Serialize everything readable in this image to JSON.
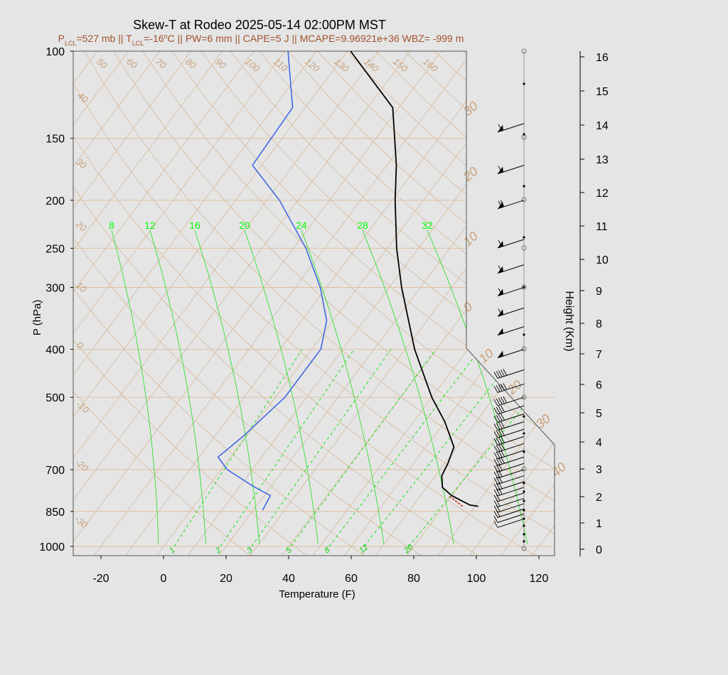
{
  "title": "Skew-T at Rodeo 2025-05-14 02:00PM MST",
  "subtitle_parts": {
    "p_lcl": "527 mb",
    "t_lcl": "-16",
    "pw": "6 mm",
    "cape": "5 J",
    "mcape": "9.96921e+36",
    "wbz": "-999 m"
  },
  "colors": {
    "background": "#e5e5e5",
    "dewpoint": "#4169e1",
    "temperature": "#000000",
    "parcel": "#cc0000",
    "isobar": "#e0c0a0",
    "isotherm": "#d8b898",
    "mixing_ratio": "#00e000",
    "subtitle": "#a0522d"
  },
  "chart_data": {
    "type": "skew-t",
    "xlabel": "Temperature (F)",
    "ylabel": "P (hPa)",
    "right_label": "Height (Km)",
    "x_ticks": [
      -20,
      0,
      20,
      40,
      60,
      80,
      100,
      120
    ],
    "p_ticks": [
      100,
      150,
      200,
      250,
      300,
      400,
      500,
      700,
      850,
      1000
    ],
    "height_ticks": [
      0,
      1,
      2,
      3,
      4,
      5,
      6,
      7,
      8,
      9,
      10,
      11,
      12,
      13,
      14,
      15,
      16
    ],
    "isotherm_labels_top": [
      50,
      60,
      70,
      80,
      90,
      100,
      110,
      120,
      130,
      140,
      150,
      160
    ],
    "isotherm_labels_left": [
      40,
      30,
      20,
      10,
      0,
      -10,
      -20,
      -30
    ],
    "isotherm_labels_right": [
      30,
      20,
      10,
      0,
      10,
      20,
      30,
      40
    ],
    "mixing_ratio_top": [
      8,
      12,
      16,
      20,
      24,
      28,
      32
    ],
    "mixing_ratio_bottom": [
      1,
      2,
      3,
      5,
      8,
      12,
      20
    ],
    "temperature_profile": [
      {
        "p": 830,
        "t": 91
      },
      {
        "p": 825,
        "t": 88
      },
      {
        "p": 790,
        "t": 80
      },
      {
        "p": 760,
        "t": 75
      },
      {
        "p": 720,
        "t": 72
      },
      {
        "p": 680,
        "t": 71
      },
      {
        "p": 630,
        "t": 69
      },
      {
        "p": 560,
        "t": 60
      },
      {
        "p": 500,
        "t": 50
      },
      {
        "p": 400,
        "t": 33
      },
      {
        "p": 300,
        "t": 14
      },
      {
        "p": 250,
        "t": 3
      },
      {
        "p": 200,
        "t": -9
      },
      {
        "p": 170,
        "t": -17
      },
      {
        "p": 130,
        "t": -32
      },
      {
        "p": 100,
        "t": -59
      }
    ],
    "parcel_segment": [
      {
        "p": 830,
        "t": 86
      },
      {
        "p": 790,
        "t": 79
      }
    ],
    "dewpoint_profile": [
      {
        "p": 845,
        "t": 23
      },
      {
        "p": 790,
        "t": 22
      },
      {
        "p": 755,
        "t": 14
      },
      {
        "p": 700,
        "t": 2
      },
      {
        "p": 660,
        "t": -4
      },
      {
        "p": 600,
        "t": -1
      },
      {
        "p": 500,
        "t": 3
      },
      {
        "p": 400,
        "t": 3
      },
      {
        "p": 350,
        "t": -2
      },
      {
        "p": 300,
        "t": -12
      },
      {
        "p": 250,
        "t": -26
      },
      {
        "p": 200,
        "t": -46
      },
      {
        "p": 170,
        "t": -63
      },
      {
        "p": 130,
        "t": -64
      },
      {
        "p": 100,
        "t": -79
      }
    ],
    "wind_barbs": [
      {
        "p": 880,
        "dir": 250,
        "speed": 10
      },
      {
        "p": 860,
        "dir": 250,
        "speed": 10
      },
      {
        "p": 840,
        "dir": 250,
        "speed": 15
      },
      {
        "p": 820,
        "dir": 250,
        "speed": 15
      },
      {
        "p": 800,
        "dir": 255,
        "speed": 20
      },
      {
        "p": 780,
        "dir": 255,
        "speed": 20
      },
      {
        "p": 760,
        "dir": 255,
        "speed": 25
      },
      {
        "p": 740,
        "dir": 255,
        "speed": 25
      },
      {
        "p": 720,
        "dir": 255,
        "speed": 30
      },
      {
        "p": 700,
        "dir": 255,
        "speed": 30
      },
      {
        "p": 680,
        "dir": 255,
        "speed": 30
      },
      {
        "p": 660,
        "dir": 255,
        "speed": 35
      },
      {
        "p": 640,
        "dir": 255,
        "speed": 35
      },
      {
        "p": 620,
        "dir": 255,
        "speed": 35
      },
      {
        "p": 600,
        "dir": 255,
        "speed": 40
      },
      {
        "p": 580,
        "dir": 255,
        "speed": 40
      },
      {
        "p": 560,
        "dir": 255,
        "speed": 40
      },
      {
        "p": 540,
        "dir": 255,
        "speed": 40
      },
      {
        "p": 520,
        "dir": 255,
        "speed": 40
      },
      {
        "p": 500,
        "dir": 255,
        "speed": 45
      },
      {
        "p": 470,
        "dir": 255,
        "speed": 45
      },
      {
        "p": 440,
        "dir": 255,
        "speed": 45
      },
      {
        "p": 400,
        "dir": 255,
        "speed": 50
      },
      {
        "p": 360,
        "dir": 255,
        "speed": 50
      },
      {
        "p": 330,
        "dir": 255,
        "speed": 55
      },
      {
        "p": 300,
        "dir": 255,
        "speed": 55
      },
      {
        "p": 270,
        "dir": 255,
        "speed": 55
      },
      {
        "p": 240,
        "dir": 255,
        "speed": 60
      },
      {
        "p": 200,
        "dir": 255,
        "speed": 65
      },
      {
        "p": 170,
        "dir": 255,
        "speed": 60
      },
      {
        "p": 140,
        "dir": 255,
        "speed": 55
      }
    ]
  }
}
